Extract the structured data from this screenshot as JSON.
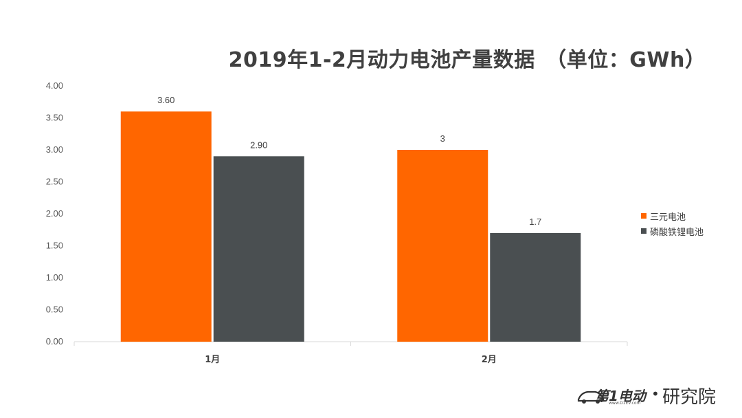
{
  "chart_data": {
    "type": "bar",
    "title": "2019年1-2月动力电池产量数据　（单位：GWh）",
    "categories": [
      "1月",
      "2月"
    ],
    "series": [
      {
        "name": "三元电池",
        "values": [
          3.6,
          3.0
        ],
        "labels": [
          "3.60",
          "3"
        ],
        "color": "#FF6600"
      },
      {
        "name": "磷酸铁锂电池",
        "values": [
          2.9,
          1.7
        ],
        "labels": [
          "2.90",
          "1.7"
        ],
        "color": "#4A4F51"
      }
    ],
    "ylim": [
      0,
      4
    ],
    "yticks": [
      "0.00",
      "0.50",
      "1.00",
      "1.50",
      "2.00",
      "2.50",
      "3.00",
      "3.50",
      "4.00"
    ],
    "legend_position": "right",
    "grid": false
  },
  "logo": {
    "brand": "第1电动",
    "dot": "•",
    "name": "研究院",
    "url": "www.D1EV.com"
  }
}
